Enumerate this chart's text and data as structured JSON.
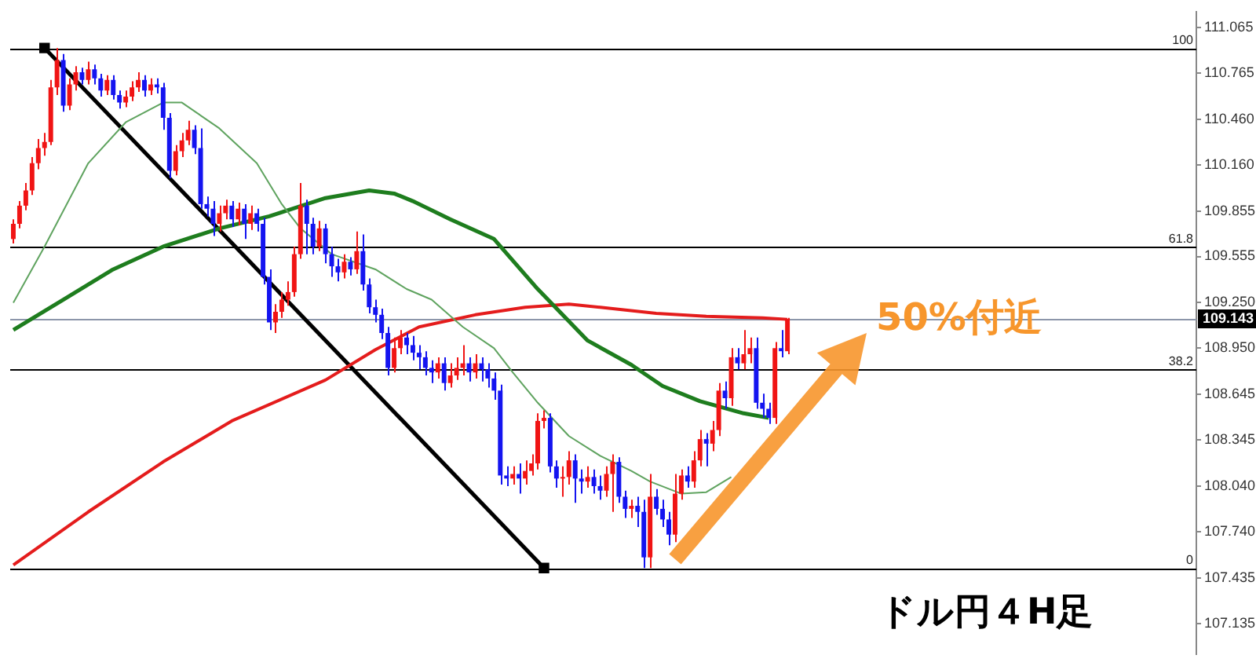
{
  "chart_data": {
    "type": "candlestick",
    "categories": [
      null,
      null,
      null,
      null,
      null,
      null,
      null,
      null,
      null,
      null,
      null,
      null,
      null,
      null,
      null,
      null,
      null,
      null,
      null,
      null,
      null,
      null,
      null,
      null,
      null,
      null,
      null,
      null,
      null,
      null,
      null,
      null,
      null,
      null,
      null,
      null,
      null,
      null,
      null,
      null,
      null,
      null,
      null,
      null,
      null,
      null,
      null,
      null,
      null,
      null,
      null,
      null,
      null,
      null,
      null,
      null,
      null,
      null,
      null,
      null,
      null,
      null,
      null,
      null,
      null,
      null,
      null,
      null,
      null,
      null,
      null,
      null,
      null,
      null,
      null,
      null,
      null,
      null,
      null,
      null,
      null,
      null,
      null,
      null,
      null,
      null,
      null,
      null,
      null,
      null,
      null,
      null,
      null,
      null,
      null,
      null,
      null,
      null,
      null,
      null,
      null,
      null,
      null,
      null,
      null,
      null,
      null,
      null,
      null,
      null,
      null,
      null,
      null,
      null,
      null,
      null,
      null,
      null,
      null,
      null,
      null,
      null,
      null,
      null,
      null,
      null,
      null,
      null,
      null,
      null,
      null,
      null,
      null,
      null,
      null,
      null,
      null,
      null,
      null,
      null,
      null,
      null,
      null,
      null,
      null,
      null,
      null,
      null,
      null,
      null,
      null,
      null,
      null,
      null,
      null,
      null,
      null,
      null,
      null,
      null,
      null,
      null,
      null,
      null,
      null,
      null,
      null,
      null,
      null,
      null,
      null,
      null,
      null,
      null,
      null,
      null,
      null,
      null,
      null,
      null,
      null,
      null,
      null,
      null,
      null,
      null,
      null,
      null,
      null,
      null
    ],
    "ohlc": [
      [
        109.67,
        109.8,
        109.64,
        109.77
      ],
      [
        109.77,
        109.92,
        109.74,
        109.89
      ],
      [
        109.89,
        110.04,
        109.86,
        109.99
      ],
      [
        109.99,
        110.21,
        109.96,
        110.17
      ],
      [
        110.17,
        110.33,
        110.13,
        110.27
      ],
      [
        110.27,
        110.37,
        110.22,
        110.31
      ],
      [
        110.31,
        110.72,
        110.29,
        110.67
      ],
      [
        110.67,
        110.93,
        110.62,
        110.85
      ],
      [
        110.85,
        110.89,
        110.51,
        110.55
      ],
      [
        110.55,
        110.73,
        110.52,
        110.69
      ],
      [
        110.69,
        110.81,
        110.65,
        110.77
      ],
      [
        110.77,
        110.8,
        110.69,
        110.72
      ],
      [
        110.72,
        110.84,
        110.69,
        110.79
      ],
      [
        110.79,
        110.82,
        110.69,
        110.73
      ],
      [
        110.73,
        110.76,
        110.61,
        110.65
      ],
      [
        110.65,
        110.75,
        110.62,
        110.72
      ],
      [
        110.72,
        110.75,
        110.59,
        110.62
      ],
      [
        110.62,
        110.65,
        110.53,
        110.57
      ],
      [
        110.57,
        110.65,
        110.54,
        110.61
      ],
      [
        110.61,
        110.71,
        110.58,
        110.67
      ],
      [
        110.67,
        110.77,
        110.64,
        110.72
      ],
      [
        110.72,
        110.75,
        110.61,
        110.65
      ],
      [
        110.65,
        110.73,
        110.62,
        110.69
      ],
      [
        110.69,
        110.73,
        110.63,
        110.67
      ],
      [
        110.67,
        110.7,
        110.39,
        110.47
      ],
      [
        110.47,
        110.5,
        110.07,
        110.12
      ],
      [
        110.12,
        110.29,
        110.09,
        110.25
      ],
      [
        110.25,
        110.37,
        110.21,
        110.32
      ],
      [
        110.32,
        110.45,
        110.29,
        110.39
      ],
      [
        110.39,
        110.42,
        110.23,
        110.27
      ],
      [
        110.27,
        110.4,
        109.87,
        109.9
      ],
      [
        109.9,
        109.95,
        109.82,
        109.87
      ],
      [
        109.87,
        109.92,
        109.69,
        109.77
      ],
      [
        109.77,
        109.89,
        109.72,
        109.84
      ],
      [
        109.84,
        109.93,
        109.8,
        109.89
      ],
      [
        109.89,
        109.92,
        109.75,
        109.8
      ],
      [
        109.8,
        109.91,
        109.76,
        109.87
      ],
      [
        109.87,
        109.9,
        109.67,
        109.77
      ],
      [
        109.77,
        109.89,
        109.73,
        109.84
      ],
      [
        109.84,
        109.87,
        109.72,
        109.77
      ],
      [
        109.77,
        109.81,
        109.37,
        109.42
      ],
      [
        109.42,
        109.47,
        109.07,
        109.12
      ],
      [
        109.12,
        109.24,
        109.05,
        109.19
      ],
      [
        109.19,
        109.32,
        109.15,
        109.27
      ],
      [
        109.27,
        109.39,
        109.23,
        109.32
      ],
      [
        109.32,
        109.62,
        109.29,
        109.57
      ],
      [
        109.57,
        110.04,
        109.54,
        109.89
      ],
      [
        109.89,
        109.93,
        109.57,
        109.77
      ],
      [
        109.77,
        109.81,
        109.57,
        109.62
      ],
      [
        109.62,
        109.79,
        109.59,
        109.74
      ],
      [
        109.74,
        109.77,
        109.51,
        109.57
      ],
      [
        109.57,
        109.62,
        109.42,
        109.49
      ],
      [
        109.49,
        109.54,
        109.39,
        109.45
      ],
      [
        109.45,
        109.57,
        109.41,
        109.52
      ],
      [
        109.52,
        109.55,
        109.43,
        109.47
      ],
      [
        109.47,
        109.72,
        109.44,
        109.59
      ],
      [
        109.59,
        109.7,
        109.33,
        109.37
      ],
      [
        109.37,
        109.41,
        109.18,
        109.22
      ],
      [
        109.22,
        109.27,
        109.12,
        109.17
      ],
      [
        109.17,
        109.21,
        109.01,
        109.05
      ],
      [
        109.05,
        109.09,
        108.77,
        108.82
      ],
      [
        108.82,
        109.02,
        108.79,
        108.95
      ],
      [
        108.95,
        109.07,
        108.91,
        109.02
      ],
      [
        109.02,
        109.05,
        108.91,
        108.97
      ],
      [
        108.97,
        109.03,
        108.87,
        108.92
      ],
      [
        108.92,
        108.97,
        108.81,
        108.89
      ],
      [
        108.89,
        108.93,
        108.77,
        108.82
      ],
      [
        108.82,
        108.87,
        108.72,
        108.79
      ],
      [
        108.79,
        108.89,
        108.75,
        108.85
      ],
      [
        108.85,
        108.89,
        108.67,
        108.72
      ],
      [
        108.72,
        108.85,
        108.69,
        108.77
      ],
      [
        108.77,
        108.89,
        108.74,
        108.82
      ],
      [
        108.82,
        108.97,
        108.77,
        108.85
      ],
      [
        108.85,
        108.89,
        108.73,
        108.79
      ],
      [
        108.79,
        108.91,
        108.75,
        108.85
      ],
      [
        108.85,
        108.89,
        108.73,
        108.81
      ],
      [
        108.81,
        108.85,
        108.69,
        108.75
      ],
      [
        108.75,
        108.79,
        108.61,
        108.67
      ],
      [
        108.67,
        108.71,
        108.05,
        108.11
      ],
      [
        108.11,
        108.17,
        108.04,
        108.09
      ],
      [
        108.09,
        108.17,
        108.05,
        108.12
      ],
      [
        108.12,
        108.19,
        107.99,
        108.09
      ],
      [
        108.09,
        108.21,
        108.05,
        108.14
      ],
      [
        108.14,
        108.25,
        108.11,
        108.19
      ],
      [
        108.19,
        108.52,
        108.15,
        108.47
      ],
      [
        108.47,
        108.54,
        108.42,
        108.49
      ],
      [
        108.49,
        108.52,
        108.13,
        108.17
      ],
      [
        108.17,
        108.21,
        108.03,
        108.09
      ],
      [
        108.09,
        108.17,
        107.97,
        108.1
      ],
      [
        108.1,
        108.27,
        108.05,
        108.21
      ],
      [
        108.21,
        108.25,
        107.93,
        108.09
      ],
      [
        108.09,
        108.15,
        107.99,
        108.07
      ],
      [
        108.07,
        108.17,
        108.03,
        108.1
      ],
      [
        108.1,
        108.15,
        107.99,
        108.04
      ],
      [
        108.04,
        108.11,
        107.95,
        108.01
      ],
      [
        108.01,
        108.17,
        107.97,
        108.12
      ],
      [
        108.12,
        108.25,
        107.87,
        108.2
      ],
      [
        108.2,
        108.23,
        107.93,
        107.97
      ],
      [
        107.97,
        108.01,
        107.83,
        107.89
      ],
      [
        107.89,
        107.95,
        107.83,
        107.91
      ],
      [
        107.91,
        107.97,
        107.77,
        107.87
      ],
      [
        107.87,
        107.95,
        107.5,
        107.57
      ],
      [
        107.57,
        108.12,
        107.5,
        107.97
      ],
      [
        107.97,
        108.02,
        107.85,
        107.89
      ],
      [
        107.89,
        107.95,
        107.77,
        107.82
      ],
      [
        107.82,
        107.87,
        107.65,
        107.72
      ],
      [
        107.72,
        108.12,
        107.67,
        107.99
      ],
      [
        107.99,
        108.15,
        107.95,
        108.11
      ],
      [
        108.11,
        108.17,
        108.03,
        108.07
      ],
      [
        108.07,
        108.27,
        108.03,
        108.21
      ],
      [
        108.21,
        108.41,
        108.17,
        108.35
      ],
      [
        108.35,
        108.39,
        108.17,
        108.32
      ],
      [
        108.32,
        108.47,
        108.27,
        108.41
      ],
      [
        108.41,
        108.72,
        108.37,
        108.67
      ],
      [
        108.67,
        108.73,
        108.55,
        108.62
      ],
      [
        108.62,
        108.95,
        108.57,
        108.89
      ],
      [
        108.89,
        108.95,
        108.81,
        108.85
      ],
      [
        108.85,
        109.07,
        108.81,
        108.91
      ],
      [
        108.91,
        109.02,
        108.85,
        108.95
      ],
      [
        108.95,
        109.02,
        108.55,
        108.59
      ],
      [
        108.59,
        108.65,
        108.49,
        108.55
      ],
      [
        108.55,
        108.59,
        108.45,
        108.49
      ],
      [
        108.49,
        108.99,
        108.45,
        108.95
      ],
      [
        108.95,
        109.07,
        108.89,
        108.93
      ],
      [
        108.93,
        109.15,
        108.91,
        109.143
      ],
      null,
      null,
      null,
      null,
      null,
      null,
      null,
      null,
      null,
      null,
      null,
      null,
      null,
      null,
      null,
      null,
      null,
      null,
      null,
      null,
      null,
      null,
      null,
      null,
      null,
      null,
      null,
      null,
      null,
      null,
      null,
      null,
      null,
      null,
      null,
      null,
      null,
      null,
      null,
      null,
      null,
      null,
      null,
      null,
      null,
      null,
      null,
      null,
      null,
      null,
      null,
      null,
      null,
      null,
      null,
      null,
      null,
      null,
      null,
      null,
      null,
      null,
      null,
      null,
      null
    ],
    "colors": [
      "#f01414",
      "#f01414",
      "#f01414",
      "#f01414",
      "#f01414",
      "#f01414",
      "#f01414",
      "#f01414",
      "#1414f0",
      "#f01414",
      "#f01414",
      "#1414f0",
      "#f01414",
      "#1414f0",
      "#1414f0",
      "#f01414",
      "#1414f0",
      "#1414f0",
      "#f01414",
      "#f01414",
      "#f01414",
      "#1414f0",
      "#f01414",
      "#1414f0",
      "#1414f0",
      "#1414f0",
      "#f01414",
      "#f01414",
      "#f01414",
      "#1414f0",
      "#1414f0",
      "#1414f0",
      "#1414f0",
      "#f01414",
      "#f01414",
      "#1414f0",
      "#f01414",
      "#1414f0",
      "#f01414",
      "#1414f0",
      "#1414f0",
      "#1414f0",
      "#f01414",
      "#f01414",
      "#f01414",
      "#f01414",
      "#f01414",
      "#1414f0",
      "#1414f0",
      "#f01414",
      "#1414f0",
      "#1414f0",
      "#1414f0",
      "#f01414",
      "#1414f0",
      "#f01414",
      "#1414f0",
      "#1414f0",
      "#1414f0",
      "#1414f0",
      "#1414f0",
      "#f01414",
      "#f01414",
      "#1414f0",
      "#1414f0",
      "#1414f0",
      "#1414f0",
      "#1414f0",
      "#f01414",
      "#1414f0",
      "#f01414",
      "#f01414",
      "#f01414",
      "#1414f0",
      "#f01414",
      "#1414f0",
      "#1414f0",
      "#1414f0",
      "#1414f0",
      "#1414f0",
      "#f01414",
      "#1414f0",
      "#f01414",
      "#f01414",
      "#f01414",
      "#f01414",
      "#1414f0",
      "#1414f0",
      "#f01414",
      "#f01414",
      "#1414f0",
      "#1414f0",
      "#f01414",
      "#1414f0",
      "#1414f0",
      "#f01414",
      "#f01414",
      "#1414f0",
      "#1414f0",
      "#f01414",
      "#1414f0",
      "#1414f0",
      "#f01414",
      "#1414f0",
      "#1414f0",
      "#1414f0",
      "#f01414",
      "#f01414",
      "#1414f0",
      "#f01414",
      "#f01414",
      "#1414f0",
      "#f01414",
      "#f01414",
      "#1414f0",
      "#f01414",
      "#1414f0",
      "#f01414",
      "#f01414",
      "#1414f0",
      "#1414f0",
      "#1414f0",
      "#f01414",
      "#1414f0",
      "#f01414",
      null,
      null,
      null,
      null,
      null,
      null,
      null,
      null,
      null,
      null,
      null,
      null,
      null,
      null,
      null,
      null,
      null,
      null,
      null,
      null,
      null,
      null,
      null,
      null,
      null,
      null,
      null,
      null,
      null,
      null,
      null,
      null,
      null,
      null,
      null,
      null,
      null,
      null,
      null,
      null,
      null,
      null,
      null,
      null,
      null,
      null,
      null,
      null,
      null,
      null,
      null,
      null,
      null,
      null,
      null,
      null,
      null,
      null,
      null,
      null,
      null,
      null,
      null,
      null,
      null
    ],
    "series": [
      {
        "type": "line",
        "color": "#5fa35f",
        "marker": "none",
        "values": [
          109.25,
          null,
          null,
          null,
          null,
          109.62,
          null,
          null,
          null,
          null,
          null,
          null,
          110.17,
          null,
          null,
          null,
          null,
          null,
          110.44,
          null,
          null,
          null,
          null,
          null,
          110.57,
          null,
          null,
          110.57,
          null,
          null,
          null,
          null,
          null,
          110.4,
          null,
          null,
          null,
          null,
          null,
          110.17,
          null,
          null,
          null,
          109.9,
          null,
          null,
          109.74,
          null,
          null,
          null,
          null,
          109.57,
          null,
          null,
          null,
          null,
          null,
          null,
          109.47,
          null,
          null,
          null,
          null,
          109.34,
          null,
          null,
          null,
          109.27,
          null,
          null,
          null,
          null,
          109.09,
          null,
          null,
          null,
          null,
          108.95,
          null,
          null,
          108.79,
          null,
          null,
          null,
          108.59,
          null,
          null,
          null,
          null,
          108.37,
          null,
          null,
          null,
          null,
          108.24,
          null,
          null,
          null,
          null,
          108.14,
          null,
          null,
          108.07,
          null,
          null,
          null,
          null,
          107.99,
          null,
          null,
          null,
          108.0,
          null,
          null,
          null,
          108.1,
          null,
          null,
          null,
          null,
          null,
          null,
          null,
          null,
          null,
          null,
          null,
          null,
          null,
          null,
          null,
          null,
          null,
          null,
          null,
          null,
          null,
          null,
          null,
          null,
          null,
          null,
          null,
          null,
          null,
          null,
          null,
          null,
          null,
          null,
          null,
          null,
          null,
          null,
          null,
          null,
          null,
          null,
          null,
          null,
          null,
          null,
          null,
          null,
          null,
          null,
          null,
          null,
          null,
          null,
          null,
          null,
          null,
          null,
          null,
          null,
          null,
          null,
          null,
          null,
          null,
          null,
          null,
          null,
          null,
          null,
          null,
          null,
          null,
          null
        ]
      },
      {
        "type": "line",
        "color": "#1e7d1e",
        "marker": "none",
        "values": [
          109.07,
          null,
          null,
          null,
          null,
          null,
          null,
          null,
          109.27,
          null,
          null,
          null,
          null,
          null,
          null,
          null,
          109.47,
          null,
          null,
          null,
          null,
          null,
          null,
          null,
          109.62,
          null,
          null,
          null,
          null,
          null,
          null,
          null,
          null,
          109.74,
          null,
          null,
          null,
          null,
          null,
          null,
          null,
          109.82,
          null,
          null,
          null,
          null,
          null,
          null,
          null,
          null,
          109.94,
          null,
          null,
          null,
          null,
          null,
          null,
          109.99,
          null,
          null,
          null,
          109.97,
          null,
          null,
          109.92,
          null,
          null,
          null,
          null,
          null,
          109.8,
          null,
          null,
          null,
          null,
          null,
          null,
          109.67,
          null,
          null,
          null,
          null,
          null,
          null,
          109.34,
          null,
          null,
          null,
          null,
          null,
          null,
          null,
          109.0,
          null,
          null,
          null,
          null,
          null,
          null,
          108.84,
          null,
          null,
          null,
          null,
          108.7,
          null,
          null,
          null,
          null,
          null,
          108.6,
          null,
          null,
          null,
          null,
          null,
          null,
          108.52,
          null,
          null,
          null,
          108.49,
          null,
          null,
          null,
          null,
          null,
          null,
          null,
          null,
          null,
          null,
          null,
          null,
          null,
          null,
          null,
          null,
          null,
          null,
          null,
          null,
          null,
          null,
          null,
          null,
          null,
          null,
          null,
          null,
          null,
          null,
          null,
          null,
          null,
          null,
          null,
          null,
          null,
          null,
          null,
          null,
          null,
          null,
          null,
          null,
          null,
          null,
          null,
          null,
          null,
          null,
          null,
          null,
          null,
          null,
          null,
          null,
          null,
          null,
          null,
          null,
          null,
          null,
          null,
          null,
          null,
          null,
          null,
          null
        ]
      },
      {
        "type": "line",
        "color": "#e41c1c",
        "marker": "none",
        "values": [
          107.52,
          null,
          null,
          null,
          null,
          null,
          null,
          null,
          null,
          null,
          null,
          null,
          107.87,
          null,
          null,
          null,
          null,
          null,
          null,
          null,
          null,
          null,
          null,
          null,
          108.2,
          null,
          null,
          null,
          null,
          null,
          null,
          null,
          null,
          null,
          null,
          108.47,
          null,
          null,
          null,
          null,
          null,
          null,
          null,
          null,
          null,
          null,
          null,
          null,
          null,
          null,
          108.74,
          null,
          null,
          null,
          null,
          null,
          null,
          null,
          108.94,
          null,
          null,
          null,
          null,
          null,
          null,
          109.09,
          null,
          null,
          null,
          null,
          null,
          null,
          null,
          null,
          109.17,
          null,
          null,
          null,
          null,
          null,
          null,
          null,
          109.22,
          null,
          null,
          null,
          null,
          null,
          null,
          109.24,
          null,
          null,
          null,
          null,
          109.22,
          null,
          null,
          null,
          null,
          null,
          null,
          null,
          null,
          109.18,
          null,
          null,
          null,
          null,
          null,
          null,
          null,
          109.16,
          null,
          null,
          null,
          null,
          null,
          null,
          null,
          null,
          109.15,
          null,
          null,
          null,
          109.14,
          null,
          null,
          null,
          null,
          null,
          null,
          null,
          null,
          null,
          null,
          null,
          null,
          null,
          null,
          null,
          null,
          null,
          null,
          null,
          null,
          null,
          null,
          null,
          null,
          null,
          null,
          null,
          null,
          null,
          null,
          null,
          null,
          null,
          null,
          null,
          null,
          null,
          null,
          null,
          null,
          null,
          null,
          null,
          null,
          null,
          null,
          null,
          null,
          null,
          null,
          null,
          null,
          null,
          null,
          null,
          null,
          null,
          null,
          null,
          null,
          null,
          null,
          null,
          null,
          null
        ]
      },
      {
        "type": "line",
        "color": "#000000",
        "marker": "square",
        "values": [
          null,
          null,
          null,
          null,
          null,
          110.93,
          null,
          null,
          null,
          null,
          null,
          null,
          null,
          null,
          null,
          null,
          null,
          null,
          null,
          null,
          null,
          null,
          null,
          null,
          null,
          null,
          null,
          null,
          null,
          null,
          null,
          null,
          null,
          null,
          null,
          null,
          null,
          null,
          null,
          null,
          null,
          null,
          null,
          null,
          null,
          null,
          null,
          null,
          null,
          null,
          null,
          null,
          null,
          null,
          null,
          null,
          null,
          null,
          null,
          null,
          null,
          null,
          null,
          null,
          null,
          null,
          null,
          null,
          null,
          null,
          null,
          null,
          null,
          null,
          null,
          null,
          null,
          null,
          null,
          null,
          null,
          null,
          null,
          null,
          null,
          107.5,
          null,
          null,
          null,
          null,
          null,
          null,
          null,
          null,
          null,
          null,
          null,
          null,
          null,
          null,
          null,
          null,
          null,
          null,
          null,
          null,
          null,
          null,
          null,
          null,
          null,
          null,
          null,
          null,
          null,
          null,
          null,
          null,
          null,
          null,
          null,
          null,
          null,
          null,
          null,
          null,
          null,
          null,
          null,
          null,
          null,
          null,
          null,
          null,
          null,
          null,
          null,
          null,
          null,
          null,
          null,
          null,
          null,
          null,
          null,
          null,
          null,
          null,
          null,
          null,
          null,
          null,
          null,
          null,
          null,
          null,
          null,
          null,
          null,
          null,
          null,
          null,
          null,
          null,
          null,
          null,
          null,
          null,
          null,
          null,
          null,
          null,
          null,
          null,
          null,
          null,
          null,
          null,
          null,
          null,
          null,
          null,
          null,
          null,
          null,
          null,
          null,
          null,
          null,
          null
        ]
      }
    ],
    "ylim": [
      106.93,
      111.17
    ],
    "yticks": [
      111.065,
      110.765,
      {
        "value": 110.46,
        "label": "110.460"
      },
      {
        "value": 110.16,
        "label": "110.160"
      },
      109.855,
      109.555,
      {
        "value": 109.25,
        "label": "109.250"
      },
      {
        "value": 108.95,
        "label": "108.950"
      },
      108.645,
      108.345,
      {
        "value": 108.04,
        "label": "108.040"
      },
      {
        "value": 107.74,
        "label": "107.740"
      },
      107.435,
      107.135
    ],
    "ref_lines": [
      {
        "axis": "y",
        "value": 110.925,
        "color": "#000000"
      },
      {
        "axis": "y",
        "value": 109.617,
        "color": "#000000"
      },
      {
        "axis": "y",
        "value": 109.143,
        "label": "109.143",
        "color": "#8c96aa"
      },
      {
        "axis": "y",
        "value": 108.808,
        "color": "#000000"
      },
      {
        "axis": "y",
        "value": 107.5,
        "color": "#000000"
      }
    ],
    "annotations": [
      "50%付近",
      "ドル円４H足",
      {
        "text": "100",
        "y": 110.925
      },
      {
        "text": "61.8",
        "y": 109.617
      },
      {
        "text": "38.2",
        "y": 108.808
      },
      {
        "text": "0",
        "y": 107.5
      }
    ],
    "grid": false,
    "legend": false,
    "tick_labels": "y"
  }
}
